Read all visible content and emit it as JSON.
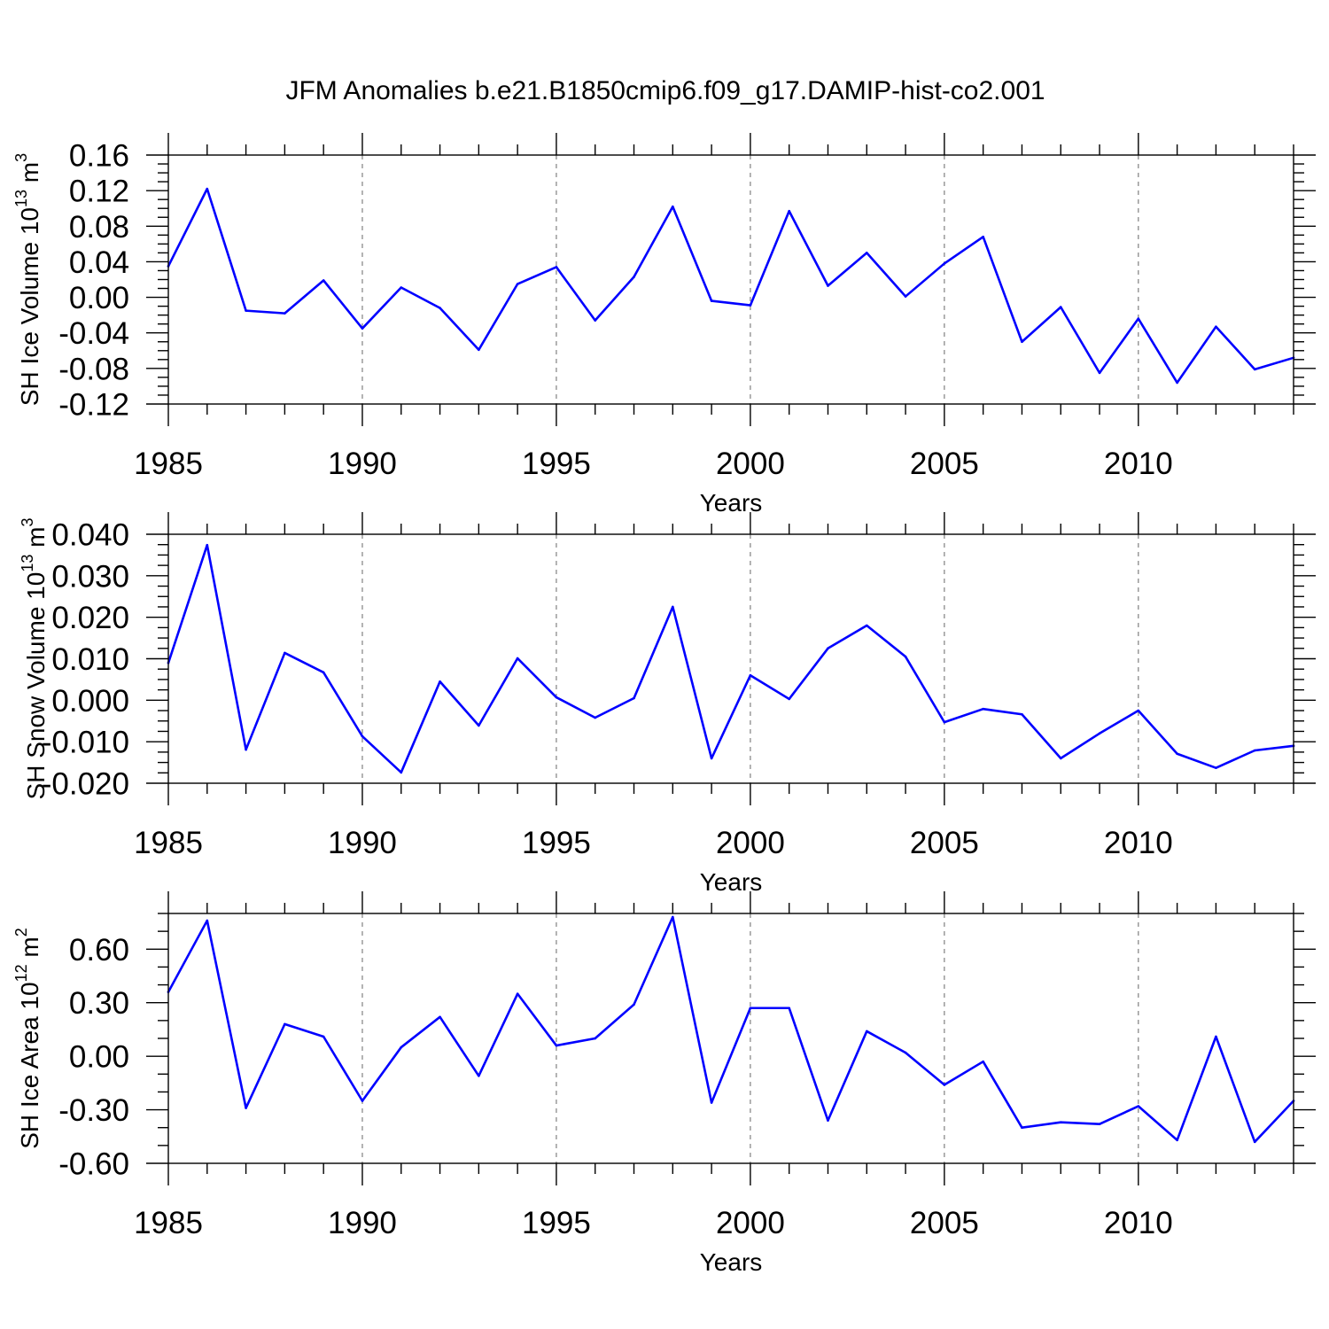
{
  "title": "JFM Anomalies b.e21.B1850cmip6.f09_g17.DAMIP-hist-co2.001",
  "colors": {
    "line": "#0000ff",
    "grid": "#808080",
    "axis": "#000000",
    "background": "#ffffff"
  },
  "chart_data": [
    {
      "type": "line",
      "ylabel": [
        {
          "text": "SH Ice Volume 10"
        },
        {
          "text": "13",
          "sup": true
        },
        {
          "text": " m"
        },
        {
          "text": "3",
          "sup": true
        }
      ],
      "xlabel": "Years",
      "xlim": [
        1985,
        2014
      ],
      "ylim": [
        -0.12,
        0.16
      ],
      "xticks": [
        1985,
        1990,
        1995,
        2000,
        2005,
        2010
      ],
      "xtick_labels": [
        "1985",
        "1990",
        "1995",
        "2000",
        "2005",
        "2010"
      ],
      "x_minor_step": 1,
      "yticks": [
        0.16,
        0.12,
        0.08,
        0.04,
        0.0,
        -0.04,
        -0.08,
        -0.12
      ],
      "ytick_labels": [
        "0.16",
        "0.12",
        "0.08",
        "0.04",
        "0.00",
        "-0.04",
        "-0.08",
        "-0.12"
      ],
      "y_minor_step": 0.01,
      "xgrid": true,
      "ygrid": false,
      "x": [
        1985,
        1986,
        1987,
        1988,
        1989,
        1990,
        1991,
        1992,
        1993,
        1994,
        1995,
        1996,
        1997,
        1998,
        1999,
        2000,
        2001,
        2002,
        2003,
        2004,
        2005,
        2006,
        2007,
        2008,
        2009,
        2010,
        2011,
        2012,
        2013,
        2014
      ],
      "series": [
        {
          "values": [
            0.035,
            0.122,
            -0.015,
            -0.018,
            0.019,
            -0.035,
            0.011,
            -0.012,
            -0.059,
            0.015,
            0.034,
            -0.026,
            0.023,
            0.102,
            -0.004,
            -0.009,
            0.097,
            0.013,
            0.05,
            0.001,
            0.038,
            0.068,
            -0.05,
            -0.011,
            -0.085,
            -0.024,
            -0.096,
            -0.033,
            -0.081,
            -0.068
          ]
        }
      ]
    },
    {
      "type": "line",
      "ylabel": [
        {
          "text": "SH Snow Volume 10"
        },
        {
          "text": "13",
          "sup": true
        },
        {
          "text": " m"
        },
        {
          "text": "3",
          "sup": true
        }
      ],
      "xlabel": "Years",
      "xlim": [
        1985,
        2014
      ],
      "ylim": [
        -0.02,
        0.04
      ],
      "xticks": [
        1985,
        1990,
        1995,
        2000,
        2005,
        2010
      ],
      "xtick_labels": [
        "1985",
        "1990",
        "1995",
        "2000",
        "2005",
        "2010"
      ],
      "x_minor_step": 1,
      "yticks": [
        0.04,
        0.03,
        0.02,
        0.01,
        0.0,
        -0.01,
        -0.02
      ],
      "ytick_labels": [
        "0.040",
        "0.030",
        "0.020",
        "0.010",
        "0.000",
        "-0.010",
        "-0.020"
      ],
      "y_minor_step": 0.0025,
      "xgrid": true,
      "ygrid": false,
      "x": [
        1985,
        1986,
        1987,
        1988,
        1989,
        1990,
        1991,
        1992,
        1993,
        1994,
        1995,
        1996,
        1997,
        1998,
        1999,
        2000,
        2001,
        2002,
        2003,
        2004,
        2005,
        2006,
        2007,
        2008,
        2009,
        2010,
        2011,
        2012,
        2013,
        2014
      ],
      "series": [
        {
          "values": [
            0.009,
            0.0374,
            -0.0119,
            0.0114,
            0.0067,
            -0.0087,
            -0.0174,
            0.0045,
            -0.0061,
            0.0101,
            0.0007,
            -0.0042,
            0.0005,
            0.0225,
            -0.014,
            0.006,
            0.0003,
            0.0125,
            0.018,
            0.0105,
            -0.0053,
            -0.0021,
            -0.0034,
            -0.014,
            -0.008,
            -0.0025,
            -0.0129,
            -0.0163,
            -0.0121,
            -0.011
          ]
        }
      ]
    },
    {
      "type": "line",
      "ylabel": [
        {
          "text": "SH Ice Area 10"
        },
        {
          "text": "12",
          "sup": true
        },
        {
          "text": " m"
        },
        {
          "text": "2",
          "sup": true
        }
      ],
      "xlabel": "Years",
      "xlim": [
        1985,
        2014
      ],
      "ylim": [
        -0.6,
        0.8
      ],
      "xticks": [
        1985,
        1990,
        1995,
        2000,
        2005,
        2010
      ],
      "xtick_labels": [
        "1985",
        "1990",
        "1995",
        "2000",
        "2005",
        "2010"
      ],
      "x_minor_step": 1,
      "yticks": [
        0.6,
        0.3,
        0.0,
        -0.3,
        -0.6
      ],
      "ytick_labels": [
        "0.60",
        "0.30",
        "0.00",
        "-0.30",
        "-0.60"
      ],
      "y_minor_step": 0.1,
      "xgrid": true,
      "ygrid": false,
      "x": [
        1985,
        1986,
        1987,
        1988,
        1989,
        1990,
        1991,
        1992,
        1993,
        1994,
        1995,
        1996,
        1997,
        1998,
        1999,
        2000,
        2001,
        2002,
        2003,
        2004,
        2005,
        2006,
        2007,
        2008,
        2009,
        2010,
        2011,
        2012,
        2013,
        2014
      ],
      "series": [
        {
          "values": [
            0.36,
            0.76,
            -0.29,
            0.18,
            0.11,
            -0.25,
            0.05,
            0.22,
            -0.11,
            0.35,
            0.06,
            0.1,
            0.29,
            0.78,
            -0.26,
            0.27,
            0.27,
            -0.36,
            0.14,
            0.02,
            -0.16,
            -0.03,
            -0.4,
            -0.37,
            -0.38,
            -0.28,
            -0.47,
            0.11,
            -0.48,
            -0.25
          ]
        }
      ]
    }
  ]
}
